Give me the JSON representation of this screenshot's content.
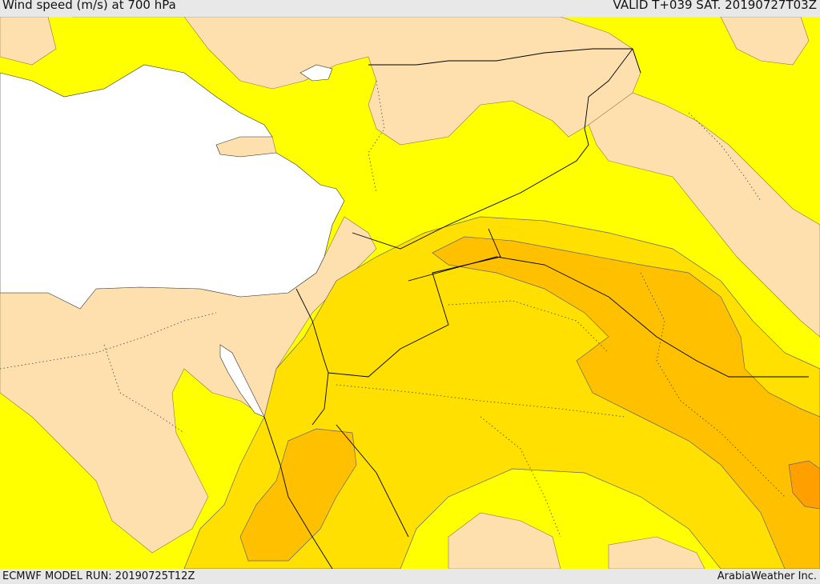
{
  "header": {
    "title": "Wind speed (m/s) at 700 hPa",
    "valid_time": "VALID T+039 SAT. 20190727T03Z"
  },
  "footer": {
    "model_run": "ECMWF MODEL RUN: 20190725T12Z",
    "credit": "ArabiaWeather Inc."
  },
  "map": {
    "variable": "wind-speed-700hPa",
    "colors": {
      "sea": "#ffffff",
      "land_low": "#fde0ae",
      "band_yellow": "#ffff00",
      "band_gold": "#ffe000",
      "band_amber": "#ffc000",
      "band_orange": "#ff9f00",
      "borders": "#000000"
    }
  }
}
